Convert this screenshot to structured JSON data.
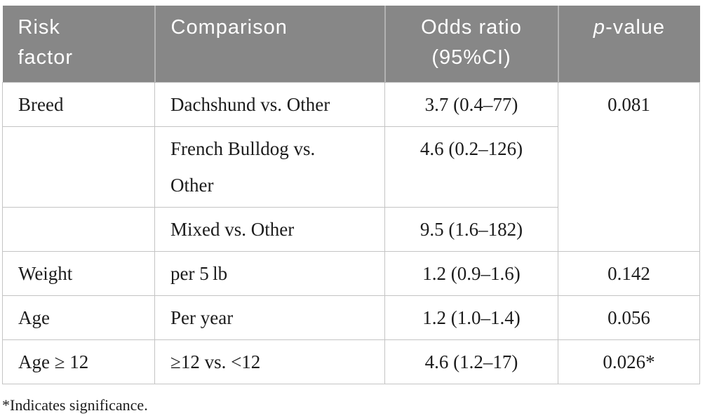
{
  "table": {
    "columns": [
      {
        "label": "Risk\nfactor"
      },
      {
        "label": "Comparison"
      },
      {
        "label": "Odds ratio\n(95%CI)"
      },
      {
        "label_italic": "p",
        "label_rest": "-value"
      }
    ],
    "rows": [
      {
        "risk_factor": "Breed",
        "comparison": "Dachshund vs. Other",
        "odds_ratio": "3.7 (0.4–77)",
        "p_value": "0.081",
        "p_rowspan": 3
      },
      {
        "risk_factor": "",
        "comparison": "French Bulldog vs.\nOther",
        "odds_ratio": "4.6 (0.2–126)"
      },
      {
        "risk_factor": "",
        "comparison": "Mixed vs. Other",
        "odds_ratio": "9.5 (1.6–182)"
      },
      {
        "risk_factor": "Weight",
        "comparison": "per 5 lb",
        "odds_ratio": "1.2 (0.9–1.6)",
        "p_value": "0.142"
      },
      {
        "risk_factor": "Age",
        "comparison": "Per year",
        "odds_ratio": "1.2 (1.0–1.4)",
        "p_value": "0.056"
      },
      {
        "risk_factor": "Age ≥ 12",
        "comparison": "≥12 vs. <12",
        "odds_ratio": "4.6 (1.2–17)",
        "p_value": "0.026*"
      }
    ]
  },
  "footnote": "*Indicates significance.",
  "colors": {
    "header_bg": "#878787",
    "header_divider": "#b2b2b2",
    "body_border": "#c4c4c4",
    "header_text": "#ffffff",
    "body_text": "#1c1c1c"
  }
}
